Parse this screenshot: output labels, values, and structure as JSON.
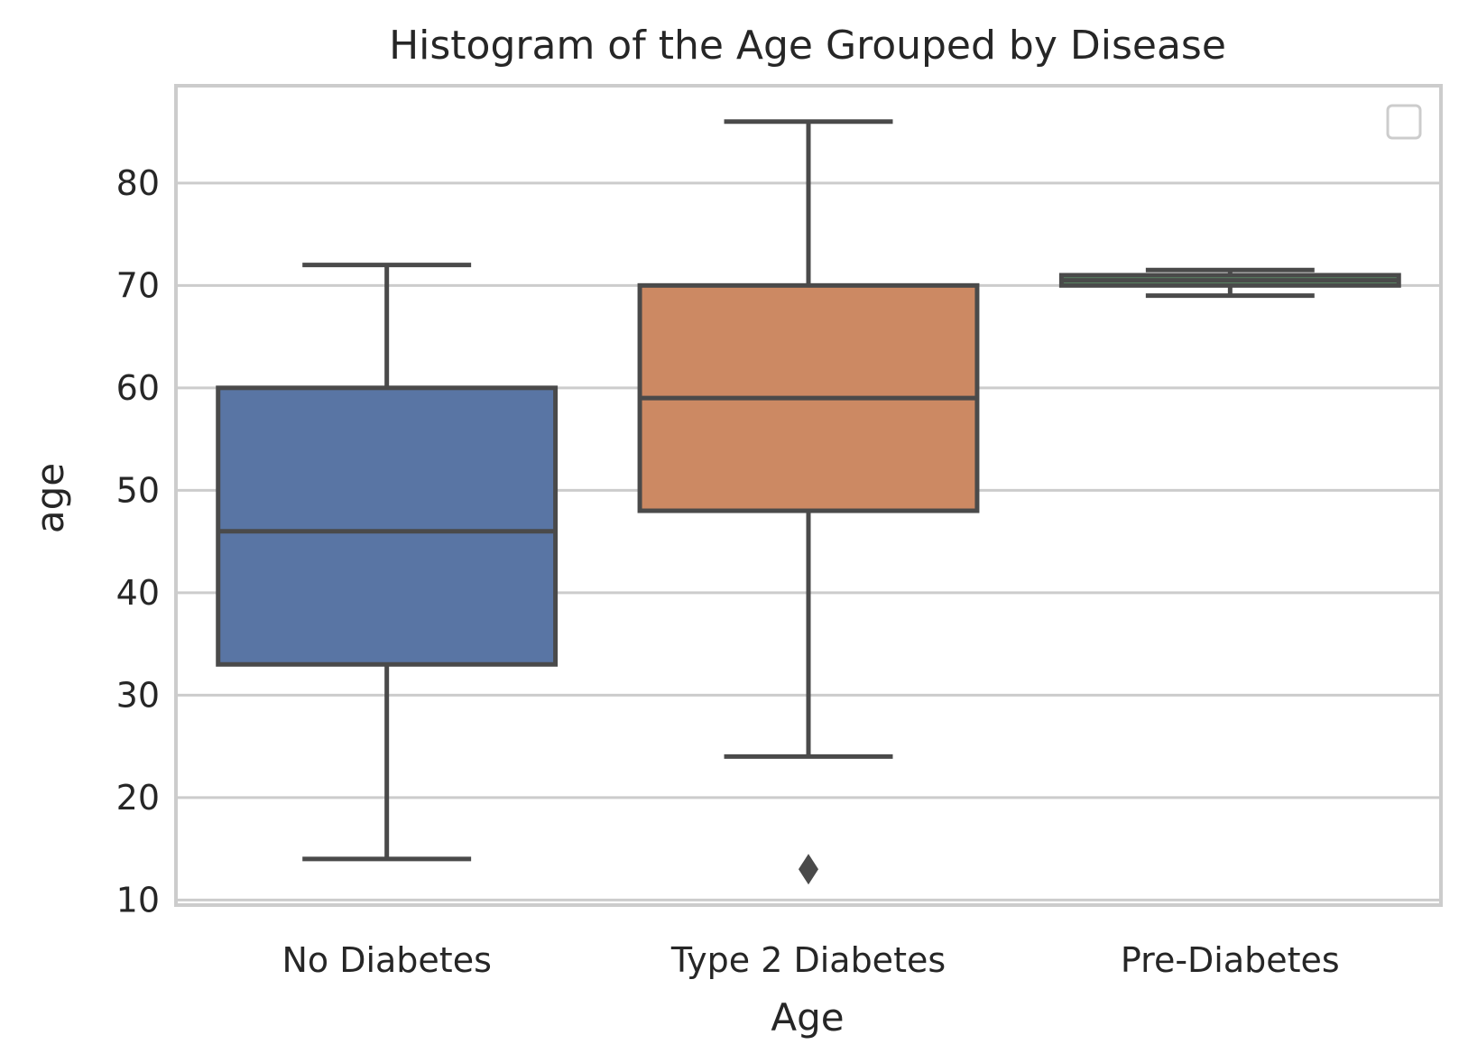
{
  "chart_data": {
    "type": "box",
    "title": "Histogram of the Age Grouped by Disease",
    "xlabel": "Age",
    "ylabel": "age",
    "categories": [
      "No Diabetes",
      "Type 2 Diabetes",
      "Pre-Diabetes"
    ],
    "ylim": [
      9.5,
      89.5
    ],
    "yticks": [
      10,
      20,
      30,
      40,
      50,
      60,
      70,
      80
    ],
    "grid": "y",
    "legend": {
      "placement": "top-right",
      "entries": []
    },
    "boxes": [
      {
        "category": "No Diabetes",
        "whisker_low": 14,
        "q1": 33,
        "median": 46,
        "q3": 60,
        "whisker_high": 72,
        "outliers": [],
        "color": "#5975a4"
      },
      {
        "category": "Type 2 Diabetes",
        "whisker_low": 24,
        "q1": 48,
        "median": 59,
        "q3": 70,
        "whisker_high": 86,
        "outliers": [
          13
        ],
        "color": "#cc8963"
      },
      {
        "category": "Pre-Diabetes",
        "whisker_low": 69,
        "q1": 70,
        "median": 70.5,
        "q3": 71,
        "whisker_high": 71.5,
        "outliers": [],
        "color": "#5f9e6e"
      }
    ],
    "line_color": "#4a4a4a"
  }
}
